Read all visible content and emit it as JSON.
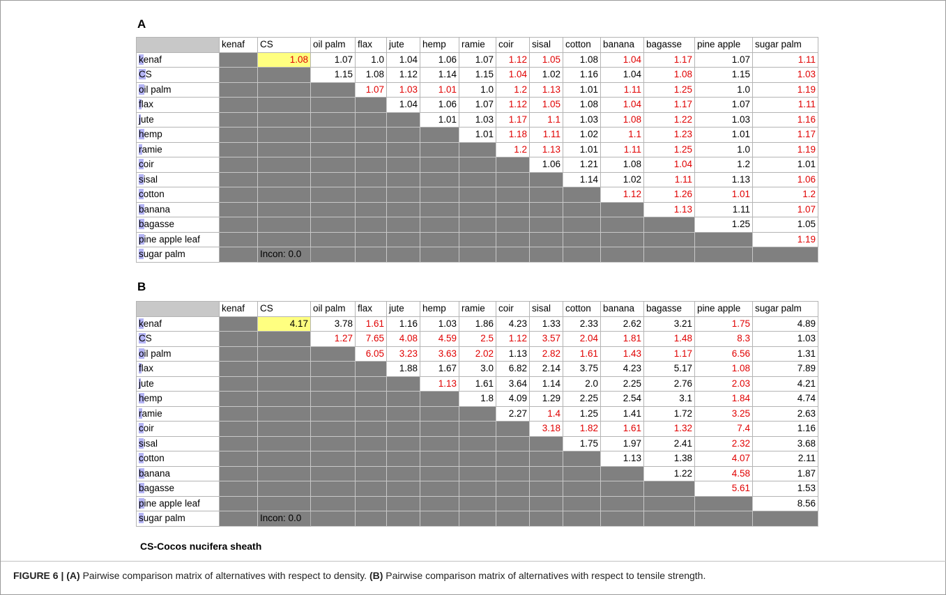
{
  "figure": {
    "panels": [
      {
        "label": "A",
        "columns": [
          "kenaf",
          "CS",
          "oil palm",
          "flax",
          "jute",
          "hemp",
          "ramie",
          "coir",
          "sisal",
          "cotton",
          "banana",
          "bagasse",
          "pine apple",
          "sugar palm"
        ],
        "incon": "Incon: 0.0",
        "rows": [
          {
            "label": "kenaf",
            "values": [
              "1.08",
              "1.07",
              "1.0",
              "1.04",
              "1.06",
              "1.07",
              "1.12",
              "1.05",
              "1.08",
              "1.04",
              "1.17",
              "1.07",
              "1.11"
            ],
            "colors": [
              "#e00000",
              "#000000",
              "#000000",
              "#000000",
              "#000000",
              "#000000",
              "#e00000",
              "#e00000",
              "#000000",
              "#e00000",
              "#e00000",
              "#000000",
              "#e00000"
            ]
          },
          {
            "label": "CS",
            "values": [
              "1.15",
              "1.08",
              "1.12",
              "1.14",
              "1.15",
              "1.04",
              "1.02",
              "1.16",
              "1.04",
              "1.08",
              "1.15",
              "1.03"
            ],
            "colors": [
              "#000000",
              "#000000",
              "#000000",
              "#000000",
              "#000000",
              "#e00000",
              "#000000",
              "#000000",
              "#000000",
              "#e00000",
              "#000000",
              "#e00000"
            ]
          },
          {
            "label": "oil palm",
            "values": [
              "1.07",
              "1.03",
              "1.01",
              "1.0",
              "1.2",
              "1.13",
              "1.01",
              "1.11",
              "1.25",
              "1.0",
              "1.19"
            ],
            "colors": [
              "#e00000",
              "#e00000",
              "#e00000",
              "#000000",
              "#e00000",
              "#e00000",
              "#000000",
              "#e00000",
              "#e00000",
              "#000000",
              "#e00000"
            ]
          },
          {
            "label": "flax",
            "values": [
              "1.04",
              "1.06",
              "1.07",
              "1.12",
              "1.05",
              "1.08",
              "1.04",
              "1.17",
              "1.07",
              "1.11"
            ],
            "colors": [
              "#000000",
              "#000000",
              "#000000",
              "#e00000",
              "#e00000",
              "#000000",
              "#e00000",
              "#e00000",
              "#000000",
              "#e00000"
            ]
          },
          {
            "label": "jute",
            "values": [
              "1.01",
              "1.03",
              "1.17",
              "1.1",
              "1.03",
              "1.08",
              "1.22",
              "1.03",
              "1.16"
            ],
            "colors": [
              "#000000",
              "#000000",
              "#e00000",
              "#e00000",
              "#000000",
              "#e00000",
              "#e00000",
              "#000000",
              "#e00000"
            ]
          },
          {
            "label": "hemp",
            "values": [
              "1.01",
              "1.18",
              "1.11",
              "1.02",
              "1.1",
              "1.23",
              "1.01",
              "1.17"
            ],
            "colors": [
              "#000000",
              "#e00000",
              "#e00000",
              "#000000",
              "#e00000",
              "#e00000",
              "#000000",
              "#e00000"
            ]
          },
          {
            "label": "ramie",
            "values": [
              "1.2",
              "1.13",
              "1.01",
              "1.11",
              "1.25",
              "1.0",
              "1.19"
            ],
            "colors": [
              "#e00000",
              "#e00000",
              "#000000",
              "#e00000",
              "#e00000",
              "#000000",
              "#e00000"
            ]
          },
          {
            "label": "coir",
            "values": [
              "1.06",
              "1.21",
              "1.08",
              "1.04",
              "1.2",
              "1.01"
            ],
            "colors": [
              "#000000",
              "#000000",
              "#000000",
              "#e00000",
              "#000000",
              "#000000"
            ]
          },
          {
            "label": "sisal",
            "values": [
              "1.14",
              "1.02",
              "1.11",
              "1.13",
              "1.06"
            ],
            "colors": [
              "#000000",
              "#000000",
              "#e00000",
              "#000000",
              "#e00000"
            ]
          },
          {
            "label": "cotton",
            "values": [
              "1.12",
              "1.26",
              "1.01",
              "1.2"
            ],
            "colors": [
              "#e00000",
              "#e00000",
              "#e00000",
              "#e00000"
            ]
          },
          {
            "label": "banana",
            "values": [
              "1.13",
              "1.11",
              "1.07"
            ],
            "colors": [
              "#e00000",
              "#000000",
              "#e00000"
            ]
          },
          {
            "label": "bagasse",
            "values": [
              "1.25",
              "1.05"
            ],
            "colors": [
              "#000000",
              "#000000"
            ]
          },
          {
            "label": "pine apple leaf",
            "values": [
              "1.19"
            ],
            "colors": [
              "#e00000"
            ]
          },
          {
            "label": "sugar palm",
            "values": [],
            "colors": []
          }
        ]
      },
      {
        "label": "B",
        "columns": [
          "kenaf",
          "CS",
          "oil palm",
          "flax",
          "jute",
          "hemp",
          "ramie",
          "coir",
          "sisal",
          "cotton",
          "banana",
          "bagasse",
          "pine apple",
          "sugar palm"
        ],
        "incon": "Incon: 0.0",
        "rows": [
          {
            "label": "kenaf",
            "values": [
              "4.17",
              "3.78",
              "1.61",
              "1.16",
              "1.03",
              "1.86",
              "4.23",
              "1.33",
              "2.33",
              "2.62",
              "3.21",
              "1.75",
              "4.89"
            ],
            "colors": [
              "#000000",
              "#000000",
              "#e00000",
              "#000000",
              "#000000",
              "#000000",
              "#000000",
              "#000000",
              "#000000",
              "#000000",
              "#000000",
              "#e00000",
              "#000000"
            ]
          },
          {
            "label": "CS",
            "values": [
              "1.27",
              "7.65",
              "4.08",
              "4.59",
              "2.5",
              "1.12",
              "3.57",
              "2.04",
              "1.81",
              "1.48",
              "8.3",
              "1.03"
            ],
            "colors": [
              "#e00000",
              "#e00000",
              "#e00000",
              "#e00000",
              "#e00000",
              "#e00000",
              "#e00000",
              "#e00000",
              "#e00000",
              "#e00000",
              "#e00000",
              "#000000"
            ]
          },
          {
            "label": "oil palm",
            "values": [
              "6.05",
              "3.23",
              "3.63",
              "2.02",
              "1.13",
              "2.82",
              "1.61",
              "1.43",
              "1.17",
              "6.56",
              "1.31"
            ],
            "colors": [
              "#e00000",
              "#e00000",
              "#e00000",
              "#e00000",
              "#000000",
              "#e00000",
              "#e00000",
              "#e00000",
              "#e00000",
              "#e00000",
              "#000000"
            ]
          },
          {
            "label": "flax",
            "values": [
              "1.88",
              "1.67",
              "3.0",
              "6.82",
              "2.14",
              "3.75",
              "4.23",
              "5.17",
              "1.08",
              "7.89"
            ],
            "colors": [
              "#000000",
              "#000000",
              "#000000",
              "#000000",
              "#000000",
              "#000000",
              "#000000",
              "#000000",
              "#e00000",
              "#000000"
            ]
          },
          {
            "label": "jute",
            "values": [
              "1.13",
              "1.61",
              "3.64",
              "1.14",
              "2.0",
              "2.25",
              "2.76",
              "2.03",
              "4.21"
            ],
            "colors": [
              "#e00000",
              "#000000",
              "#000000",
              "#000000",
              "#000000",
              "#000000",
              "#000000",
              "#e00000",
              "#000000"
            ]
          },
          {
            "label": "hemp",
            "values": [
              "1.8",
              "4.09",
              "1.29",
              "2.25",
              "2.54",
              "3.1",
              "1.84",
              "4.74"
            ],
            "colors": [
              "#000000",
              "#000000",
              "#000000",
              "#000000",
              "#000000",
              "#000000",
              "#e00000",
              "#000000"
            ]
          },
          {
            "label": "ramie",
            "values": [
              "2.27",
              "1.4",
              "1.25",
              "1.41",
              "1.72",
              "3.25",
              "2.63"
            ],
            "colors": [
              "#000000",
              "#e00000",
              "#000000",
              "#000000",
              "#000000",
              "#e00000",
              "#000000"
            ]
          },
          {
            "label": "coir",
            "values": [
              "3.18",
              "1.82",
              "1.61",
              "1.32",
              "7.4",
              "1.16"
            ],
            "colors": [
              "#e00000",
              "#e00000",
              "#e00000",
              "#e00000",
              "#e00000",
              "#000000"
            ]
          },
          {
            "label": "sisal",
            "values": [
              "1.75",
              "1.97",
              "2.41",
              "2.32",
              "3.68"
            ],
            "colors": [
              "#000000",
              "#000000",
              "#000000",
              "#e00000",
              "#000000"
            ]
          },
          {
            "label": "cotton",
            "values": [
              "1.13",
              "1.38",
              "4.07",
              "2.11"
            ],
            "colors": [
              "#000000",
              "#000000",
              "#e00000",
              "#000000"
            ]
          },
          {
            "label": "banana",
            "values": [
              "1.22",
              "4.58",
              "1.87"
            ],
            "colors": [
              "#000000",
              "#e00000",
              "#000000"
            ]
          },
          {
            "label": "bagasse",
            "values": [
              "5.61",
              "1.53"
            ],
            "colors": [
              "#e00000",
              "#000000"
            ]
          },
          {
            "label": "pine apple leaf",
            "values": [
              "8.56"
            ],
            "colors": [
              "#000000"
            ]
          },
          {
            "label": "sugar palm",
            "values": [],
            "colors": []
          }
        ]
      }
    ],
    "note": "CS-Cocos nucifera sheath",
    "caption": {
      "figure": "FIGURE 6 |",
      "a_tag": "(A)",
      "a_text": "Pairwise comparison matrix of alternatives with respect to density.",
      "b_tag": "(B)",
      "b_text": "Pairwise comparison matrix of alternatives with respect to tensile strength."
    }
  }
}
